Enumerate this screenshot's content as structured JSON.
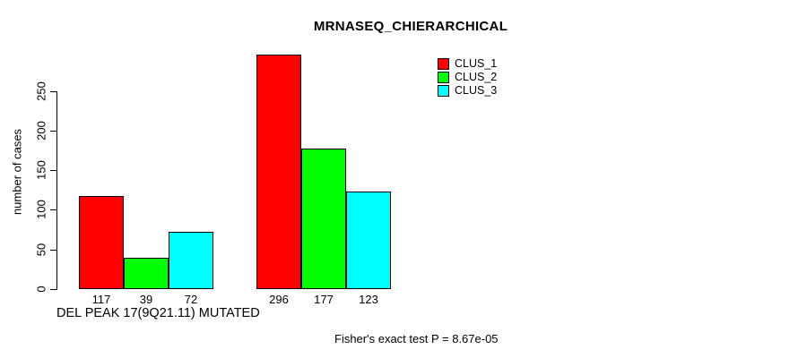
{
  "chart_data": {
    "type": "bar",
    "title": "MRNASEQ_CHIERARCHICAL",
    "ylabel": "number of cases",
    "xlabel": "DEL PEAK 17(9Q21.11) MUTATED",
    "annotation": "Fisher's exact test P = 8.67e-05",
    "ylim": [
      0,
      250
    ],
    "yticks": [
      0,
      50,
      100,
      150,
      200,
      250
    ],
    "grid": false,
    "background_color": "#ffffff",
    "axis_color": "#000000",
    "legend_position": "top-right",
    "legend": {
      "entries": [
        {
          "label": "CLUS_1",
          "color": "#ff0000"
        },
        {
          "label": "CLUS_2",
          "color": "#00ff00"
        },
        {
          "label": "CLUS_3",
          "color": "#00ffff"
        }
      ]
    },
    "groups": 2,
    "series": [
      {
        "name": "CLUS_1",
        "color": "#ff0000",
        "values": [
          117,
          296
        ]
      },
      {
        "name": "CLUS_2",
        "color": "#00ff00",
        "values": [
          39,
          177
        ]
      },
      {
        "name": "CLUS_3",
        "color": "#00ffff",
        "values": [
          72,
          123
        ]
      }
    ],
    "bar_value_labels": [
      [
        117,
        39,
        72
      ],
      [
        296,
        177,
        123
      ]
    ]
  }
}
